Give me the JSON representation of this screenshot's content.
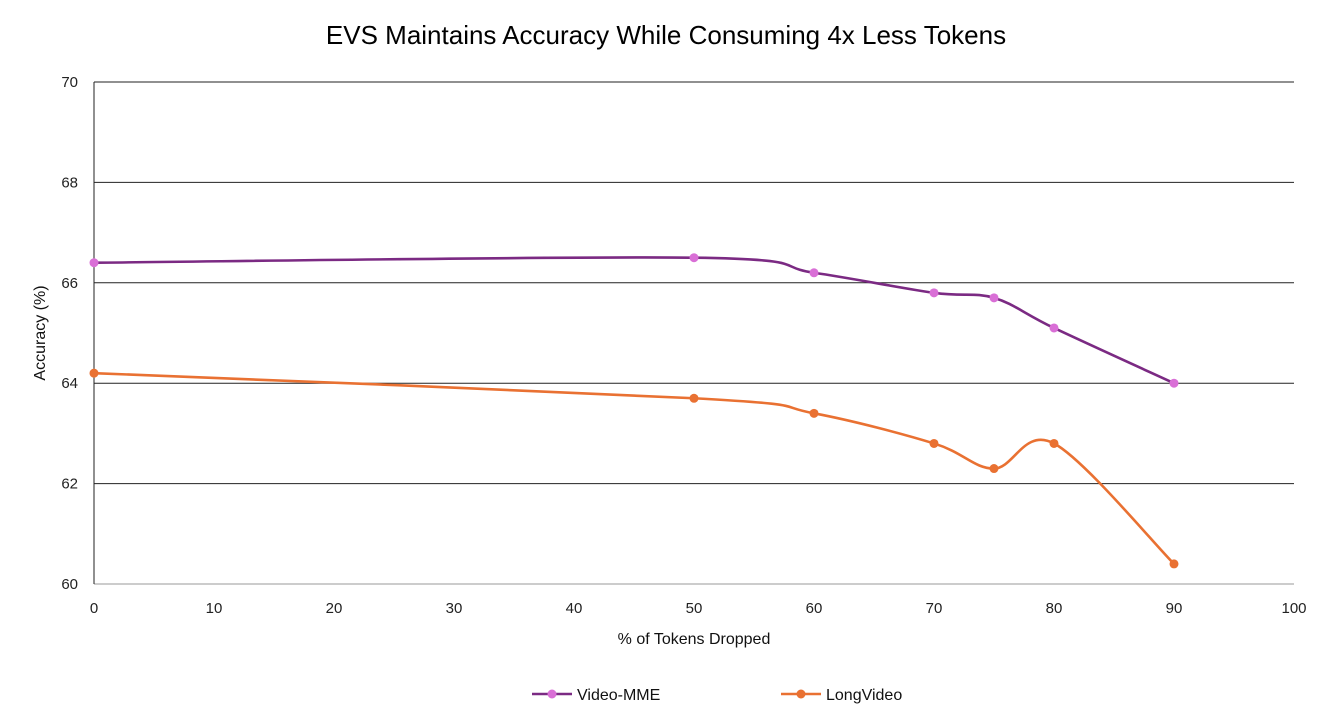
{
  "chart_data": {
    "type": "line",
    "title": "EVS Maintains Accuracy While Consuming 4x Less Tokens",
    "xlabel": "% of Tokens Dropped",
    "ylabel": "Accuracy (%)",
    "xlim": [
      0,
      100
    ],
    "ylim": [
      60,
      70
    ],
    "xticks": [
      0,
      10,
      20,
      30,
      40,
      50,
      60,
      70,
      80,
      90,
      100
    ],
    "yticks": [
      60,
      62,
      64,
      66,
      68,
      70
    ],
    "grid": "horizontal",
    "smooth": true,
    "legend_position": "bottom",
    "series": [
      {
        "name": "Video-MME",
        "line_color": "#7B2A83",
        "marker_color": "#D96FD6",
        "x": [
          0,
          50,
          60,
          70,
          75,
          80,
          90
        ],
        "y": [
          66.4,
          66.5,
          66.2,
          65.8,
          65.7,
          65.1,
          64.0
        ]
      },
      {
        "name": "LongVideo",
        "line_color": "#E97132",
        "marker_color": "#E97132",
        "x": [
          0,
          50,
          60,
          70,
          75,
          80,
          90
        ],
        "y": [
          64.2,
          63.7,
          63.4,
          62.8,
          62.3,
          62.8,
          60.4
        ]
      }
    ]
  }
}
